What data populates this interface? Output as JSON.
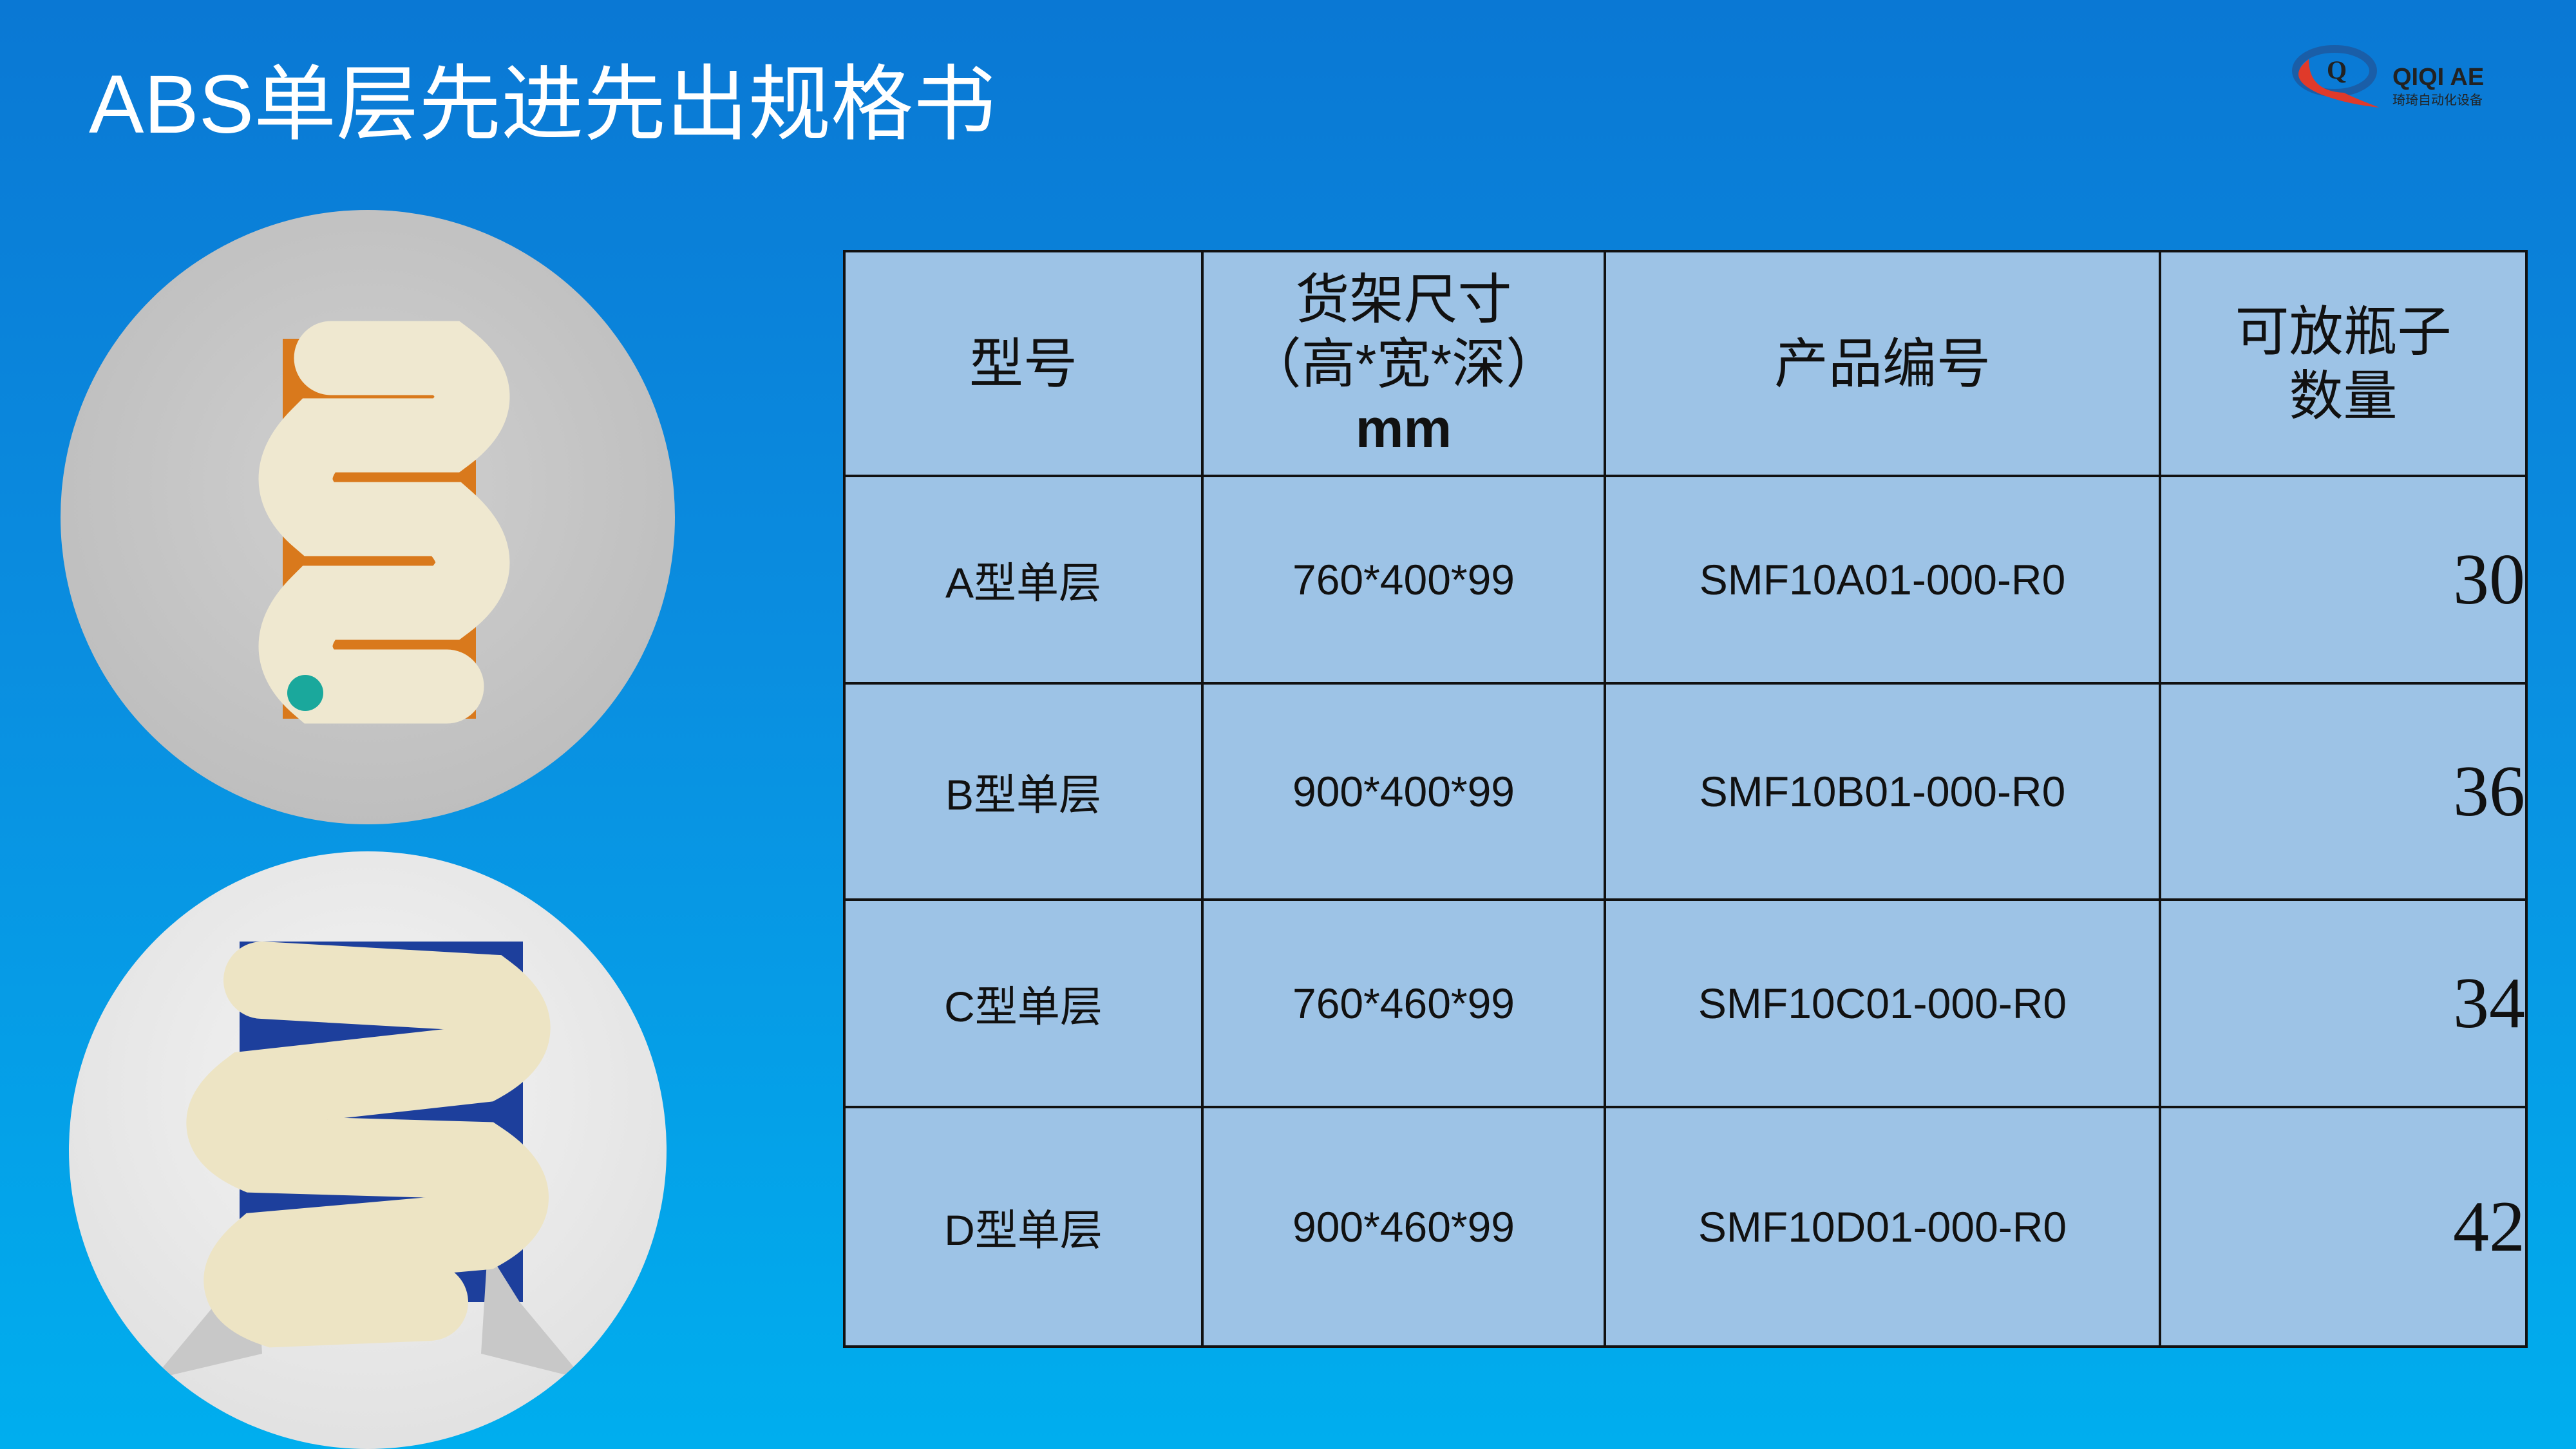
{
  "title": "ABS单层先进先出规格书",
  "logo": {
    "brand": "QIQI AE",
    "subtitle": "琦琦自动化设备",
    "mark": "Q",
    "colors": {
      "red": "#e03a2a",
      "blue": "#1a5ea8"
    }
  },
  "table": {
    "headers": {
      "model": "型号",
      "size_line1": "货架尺寸",
      "size_line2": "（高*宽*深）",
      "size_unit": "mm",
      "code": "产品编号",
      "qty_line1": "可放瓶子",
      "qty_line2": "数量"
    },
    "rows": [
      {
        "model": "A型单层",
        "size": "760*400*99",
        "code": "SMF10A01-000-R0",
        "qty": "30"
      },
      {
        "model": "B型单层",
        "size": "900*400*99",
        "code": "SMF10B01-000-R0",
        "qty": "36"
      },
      {
        "model": "C型单层",
        "size": "760*460*99",
        "code": "SMF10C01-000-R0",
        "qty": "34"
      },
      {
        "model": "D型单层",
        "size": "900*460*99",
        "code": "SMF10D01-000-R0",
        "qty": "42"
      }
    ]
  }
}
